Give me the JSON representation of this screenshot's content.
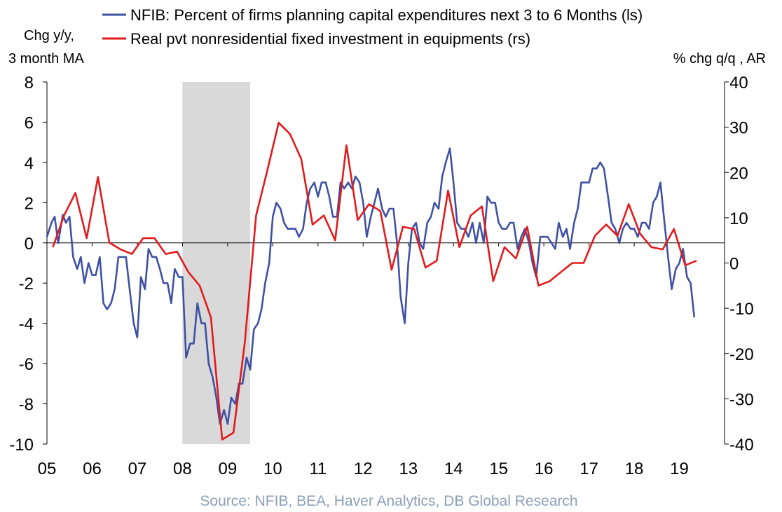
{
  "chart_data": {
    "type": "line",
    "legend": {
      "placement": "top"
    },
    "left_axis": {
      "label_line1": "Chg y/y,",
      "label_line2": "3 month MA",
      "range": [
        -10,
        8
      ],
      "ticks": [
        "8",
        "6",
        "4",
        "2",
        "0",
        "-2",
        "-4",
        "-6",
        "-8",
        "-10"
      ]
    },
    "right_axis": {
      "label": "% chg q/q , AR",
      "range": [
        -40,
        40
      ],
      "ticks": [
        "40",
        "30",
        "20",
        "10",
        "0",
        "-10",
        "-20",
        "-30",
        "-40"
      ]
    },
    "x_axis": {
      "range": [
        2005,
        2020
      ],
      "ticks": [
        "05",
        "06",
        "07",
        "08",
        "09",
        "10",
        "11",
        "12",
        "13",
        "14",
        "15",
        "16",
        "17",
        "18",
        "19"
      ]
    },
    "recession": {
      "start": 2008.0,
      "end": 2009.5,
      "color": "#d9d9d9"
    },
    "series": [
      {
        "name": "NFIB: Percent of firms planning capital expenditures next 3 to 6 Months (ls)",
        "axis": "left",
        "color": "#3f51a3",
        "points": [
          [
            2005.0,
            0.3
          ],
          [
            2005.1,
            1.0
          ],
          [
            2005.17,
            1.3
          ],
          [
            2005.25,
            0.0
          ],
          [
            2005.35,
            1.4
          ],
          [
            2005.42,
            1.0
          ],
          [
            2005.5,
            1.3
          ],
          [
            2005.58,
            -0.7
          ],
          [
            2005.67,
            -1.3
          ],
          [
            2005.75,
            -0.7
          ],
          [
            2005.83,
            -2.0
          ],
          [
            2005.92,
            -1.0
          ],
          [
            2006.0,
            -1.6
          ],
          [
            2006.08,
            -1.6
          ],
          [
            2006.17,
            -0.7
          ],
          [
            2006.25,
            -3.0
          ],
          [
            2006.33,
            -3.3
          ],
          [
            2006.42,
            -3.0
          ],
          [
            2006.5,
            -2.3
          ],
          [
            2006.58,
            -0.7
          ],
          [
            2006.75,
            -0.7
          ],
          [
            2006.83,
            -2.3
          ],
          [
            2006.92,
            -4.0
          ],
          [
            2007.0,
            -4.7
          ],
          [
            2007.08,
            -1.7
          ],
          [
            2007.17,
            -2.3
          ],
          [
            2007.25,
            -0.3
          ],
          [
            2007.33,
            -0.7
          ],
          [
            2007.42,
            -0.7
          ],
          [
            2007.5,
            -1.3
          ],
          [
            2007.58,
            -2.0
          ],
          [
            2007.67,
            -2.0
          ],
          [
            2007.75,
            -3.0
          ],
          [
            2007.83,
            -1.3
          ],
          [
            2007.92,
            -1.7
          ],
          [
            2008.0,
            -1.7
          ],
          [
            2008.08,
            -5.7
          ],
          [
            2008.17,
            -5.0
          ],
          [
            2008.25,
            -5.0
          ],
          [
            2008.33,
            -3.0
          ],
          [
            2008.42,
            -4.0
          ],
          [
            2008.5,
            -4.0
          ],
          [
            2008.58,
            -6.0
          ],
          [
            2008.67,
            -6.7
          ],
          [
            2008.75,
            -7.7
          ],
          [
            2008.83,
            -9.0
          ],
          [
            2008.92,
            -8.3
          ],
          [
            2009.0,
            -9.0
          ],
          [
            2009.08,
            -7.7
          ],
          [
            2009.17,
            -8.0
          ],
          [
            2009.25,
            -7.0
          ],
          [
            2009.33,
            -7.0
          ],
          [
            2009.42,
            -5.7
          ],
          [
            2009.5,
            -6.3
          ],
          [
            2009.58,
            -4.3
          ],
          [
            2009.67,
            -4.0
          ],
          [
            2009.75,
            -3.3
          ],
          [
            2009.83,
            -2.0
          ],
          [
            2009.92,
            -1.0
          ],
          [
            2010.0,
            1.3
          ],
          [
            2010.08,
            2.0
          ],
          [
            2010.17,
            1.7
          ],
          [
            2010.25,
            1.0
          ],
          [
            2010.33,
            0.7
          ],
          [
            2010.5,
            0.7
          ],
          [
            2010.58,
            0.3
          ],
          [
            2010.67,
            0.7
          ],
          [
            2010.75,
            2.0
          ],
          [
            2010.83,
            2.7
          ],
          [
            2010.92,
            3.0
          ],
          [
            2011.0,
            2.3
          ],
          [
            2011.08,
            3.0
          ],
          [
            2011.17,
            3.0
          ],
          [
            2011.25,
            2.3
          ],
          [
            2011.33,
            1.3
          ],
          [
            2011.42,
            1.3
          ],
          [
            2011.5,
            3.0
          ],
          [
            2011.58,
            2.7
          ],
          [
            2011.67,
            3.0
          ],
          [
            2011.75,
            2.7
          ],
          [
            2011.83,
            3.3
          ],
          [
            2011.92,
            3.0
          ],
          [
            2012.0,
            2.0
          ],
          [
            2012.08,
            0.3
          ],
          [
            2012.17,
            1.3
          ],
          [
            2012.25,
            2.0
          ],
          [
            2012.33,
            2.7
          ],
          [
            2012.42,
            1.7
          ],
          [
            2012.5,
            1.3
          ],
          [
            2012.58,
            1.7
          ],
          [
            2012.67,
            1.7
          ],
          [
            2012.75,
            0.0
          ],
          [
            2012.83,
            -2.7
          ],
          [
            2012.92,
            -4.0
          ],
          [
            2013.0,
            -1.0
          ],
          [
            2013.08,
            0.7
          ],
          [
            2013.17,
            1.0
          ],
          [
            2013.25,
            0.0
          ],
          [
            2013.33,
            -0.3
          ],
          [
            2013.42,
            1.0
          ],
          [
            2013.5,
            1.3
          ],
          [
            2013.58,
            2.0
          ],
          [
            2013.67,
            1.7
          ],
          [
            2013.75,
            3.3
          ],
          [
            2013.83,
            4.0
          ],
          [
            2013.92,
            4.7
          ],
          [
            2014.0,
            3.0
          ],
          [
            2014.08,
            1.0
          ],
          [
            2014.17,
            0.7
          ],
          [
            2014.25,
            0.7
          ],
          [
            2014.33,
            0.3
          ],
          [
            2014.42,
            1.0
          ],
          [
            2014.5,
            0.0
          ],
          [
            2014.58,
            1.0
          ],
          [
            2014.67,
            0.0
          ],
          [
            2014.75,
            2.3
          ],
          [
            2014.83,
            2.0
          ],
          [
            2014.92,
            2.0
          ],
          [
            2015.0,
            1.0
          ],
          [
            2015.08,
            0.7
          ],
          [
            2015.17,
            0.7
          ],
          [
            2015.25,
            1.0
          ],
          [
            2015.33,
            1.0
          ],
          [
            2015.42,
            -0.3
          ],
          [
            2015.5,
            0.3
          ],
          [
            2015.58,
            0.7
          ],
          [
            2015.67,
            0.0
          ],
          [
            2015.75,
            -1.0
          ],
          [
            2015.83,
            -1.7
          ],
          [
            2015.92,
            0.3
          ],
          [
            2016.0,
            0.3
          ],
          [
            2016.08,
            0.3
          ],
          [
            2016.17,
            0.0
          ],
          [
            2016.25,
            -0.3
          ],
          [
            2016.33,
            1.0
          ],
          [
            2016.42,
            0.3
          ],
          [
            2016.5,
            0.7
          ],
          [
            2016.58,
            -0.3
          ],
          [
            2016.67,
            1.0
          ],
          [
            2016.75,
            1.7
          ],
          [
            2016.83,
            3.0
          ],
          [
            2016.92,
            3.0
          ],
          [
            2017.0,
            3.0
          ],
          [
            2017.08,
            3.7
          ],
          [
            2017.17,
            3.7
          ],
          [
            2017.25,
            4.0
          ],
          [
            2017.33,
            3.7
          ],
          [
            2017.42,
            2.3
          ],
          [
            2017.5,
            1.0
          ],
          [
            2017.58,
            0.7
          ],
          [
            2017.67,
            0.0
          ],
          [
            2017.75,
            0.7
          ],
          [
            2017.83,
            1.0
          ],
          [
            2017.92,
            0.7
          ],
          [
            2018.0,
            0.7
          ],
          [
            2018.08,
            0.3
          ],
          [
            2018.17,
            1.0
          ],
          [
            2018.25,
            1.0
          ],
          [
            2018.33,
            0.7
          ],
          [
            2018.42,
            2.0
          ],
          [
            2018.5,
            2.3
          ],
          [
            2018.58,
            3.0
          ],
          [
            2018.67,
            1.0
          ],
          [
            2018.75,
            -0.7
          ],
          [
            2018.83,
            -2.3
          ],
          [
            2018.92,
            -1.3
          ],
          [
            2019.0,
            -1.0
          ],
          [
            2019.08,
            -0.3
          ],
          [
            2019.17,
            -1.7
          ],
          [
            2019.25,
            -2.0
          ],
          [
            2019.33,
            -3.7
          ]
        ]
      },
      {
        "name": "Real pvt nonresidential fixed investment in equipments (rs)",
        "axis": "right",
        "color": "#e31a1c",
        "points": [
          [
            2005.13,
            3.5
          ],
          [
            2005.38,
            10.5
          ],
          [
            2005.63,
            15.5
          ],
          [
            2005.88,
            5.5
          ],
          [
            2006.13,
            19.0
          ],
          [
            2006.38,
            4.5
          ],
          [
            2006.63,
            3.0
          ],
          [
            2006.88,
            2.0
          ],
          [
            2007.13,
            5.5
          ],
          [
            2007.38,
            5.5
          ],
          [
            2007.63,
            2.0
          ],
          [
            2007.88,
            2.5
          ],
          [
            2008.13,
            -2.0
          ],
          [
            2008.38,
            -5.0
          ],
          [
            2008.63,
            -12.0
          ],
          [
            2008.88,
            -39.0
          ],
          [
            2009.13,
            -37.5
          ],
          [
            2009.38,
            -17.5
          ],
          [
            2009.63,
            10.5
          ],
          [
            2009.88,
            20.5
          ],
          [
            2010.13,
            31.0
          ],
          [
            2010.38,
            28.5
          ],
          [
            2010.63,
            23.0
          ],
          [
            2010.88,
            8.5
          ],
          [
            2011.13,
            10.5
          ],
          [
            2011.38,
            5.0
          ],
          [
            2011.63,
            26.0
          ],
          [
            2011.88,
            9.5
          ],
          [
            2012.13,
            13.0
          ],
          [
            2012.38,
            11.5
          ],
          [
            2012.63,
            -1.5
          ],
          [
            2012.88,
            8.0
          ],
          [
            2013.13,
            7.5
          ],
          [
            2013.38,
            -1.0
          ],
          [
            2013.63,
            0.5
          ],
          [
            2013.88,
            16.0
          ],
          [
            2014.13,
            3.5
          ],
          [
            2014.38,
            10.5
          ],
          [
            2014.63,
            12.5
          ],
          [
            2014.88,
            -4.0
          ],
          [
            2015.13,
            3.5
          ],
          [
            2015.38,
            1.0
          ],
          [
            2015.63,
            8.0
          ],
          [
            2015.88,
            -5.0
          ],
          [
            2016.13,
            -4.0
          ],
          [
            2016.38,
            -2.0
          ],
          [
            2016.63,
            0.0
          ],
          [
            2016.88,
            0.0
          ],
          [
            2017.13,
            6.0
          ],
          [
            2017.38,
            8.5
          ],
          [
            2017.63,
            6.0
          ],
          [
            2017.88,
            13.0
          ],
          [
            2018.13,
            6.5
          ],
          [
            2018.38,
            3.5
          ],
          [
            2018.63,
            3.0
          ],
          [
            2018.88,
            7.5
          ],
          [
            2019.13,
            -0.5
          ],
          [
            2019.38,
            0.5
          ]
        ]
      }
    ],
    "source": "Source: NFIB, BEA, Haver Analytics, DB Global Research"
  }
}
